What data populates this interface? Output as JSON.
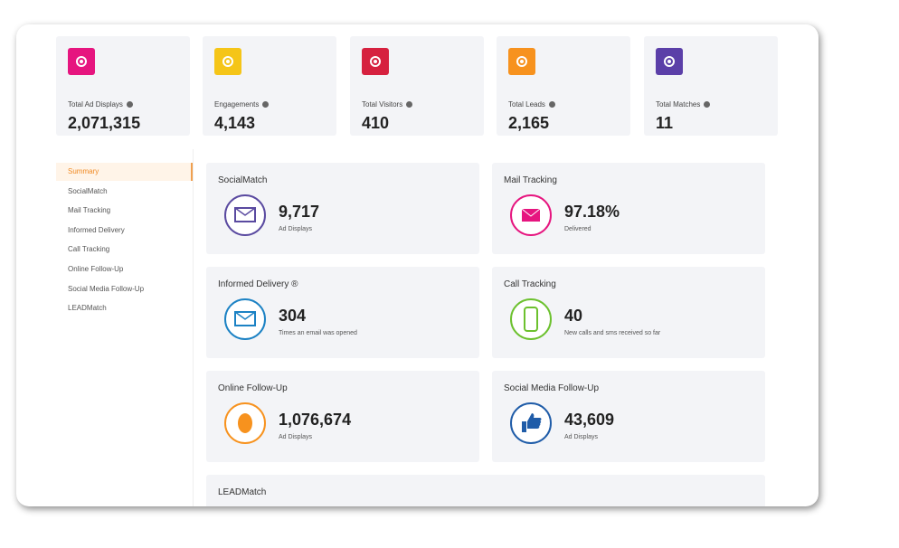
{
  "stats": [
    {
      "label": "Total Ad Displays",
      "value": "2,071,315"
    },
    {
      "label": "Engagements",
      "value": "4,143"
    },
    {
      "label": "Total Visitors",
      "value": "410"
    },
    {
      "label": "Total Leads",
      "value": "2,165"
    },
    {
      "label": "Total Matches",
      "value": "11"
    }
  ],
  "sidebar": [
    "Summary",
    "SocialMatch",
    "Mail Tracking",
    "Informed Delivery",
    "Call Tracking",
    "Online Follow-Up",
    "Social Media Follow-Up",
    "LEADMatch"
  ],
  "panels": [
    {
      "title": "SocialMatch",
      "value": "9,717",
      "caption": "Ad Displays"
    },
    {
      "title": "Mail Tracking",
      "value": "97.18%",
      "caption": "Delivered"
    },
    {
      "title": "Informed Delivery ®",
      "value": "304",
      "caption": "Times an email was opened"
    },
    {
      "title": "Call Tracking",
      "value": "40",
      "caption": "New calls and sms received so far"
    },
    {
      "title": "Online Follow-Up",
      "value": "1,076,674",
      "caption": "Ad Displays"
    },
    {
      "title": "Social Media Follow-Up",
      "value": "43,609",
      "caption": "Ad Displays"
    },
    {
      "title": "LEADMatch"
    }
  ]
}
